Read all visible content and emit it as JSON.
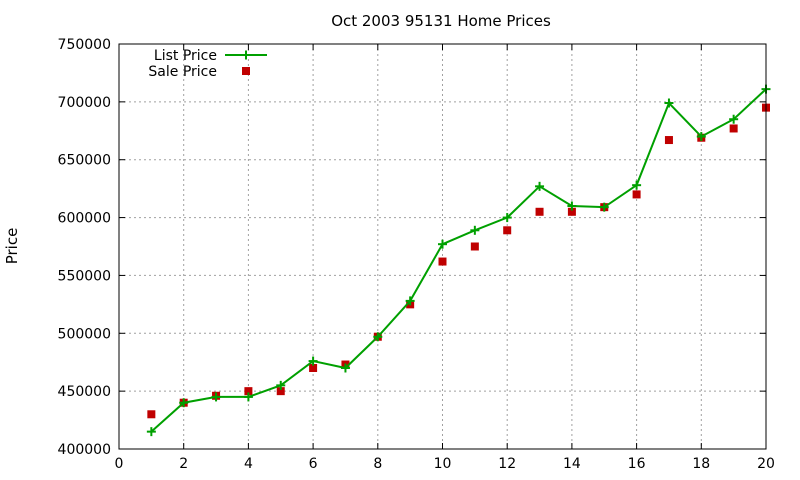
{
  "chart_data": {
    "type": "line",
    "title": "Oct 2003 95131 Home Prices",
    "xlabel": "",
    "ylabel": "Price",
    "xlim": [
      0,
      20
    ],
    "ylim": [
      400000,
      750000
    ],
    "x_ticks": [
      0,
      2,
      4,
      6,
      8,
      10,
      12,
      14,
      16,
      18,
      20
    ],
    "y_ticks": [
      400000,
      450000,
      500000,
      550000,
      600000,
      650000,
      700000,
      750000
    ],
    "grid": true,
    "legend_position": "top-left",
    "x": [
      1,
      2,
      3,
      4,
      5,
      6,
      7,
      8,
      9,
      10,
      11,
      12,
      13,
      14,
      15,
      16,
      17,
      18,
      19,
      20
    ],
    "series": [
      {
        "name": "List Price",
        "style": "line-with-plus-markers",
        "color": "#00a000",
        "values": [
          415000,
          440000,
          445000,
          445000,
          455000,
          476000,
          470000,
          497000,
          528000,
          577000,
          589000,
          600000,
          627000,
          610000,
          609000,
          628000,
          699000,
          670000,
          685000,
          711000
        ]
      },
      {
        "name": "Sale Price",
        "style": "square-markers",
        "color": "#c00000",
        "values": [
          430000,
          440000,
          446000,
          450000,
          450000,
          470000,
          473000,
          497000,
          525000,
          562000,
          575000,
          589000,
          605000,
          605000,
          609000,
          620000,
          667000,
          669000,
          677000,
          695000
        ]
      }
    ]
  }
}
